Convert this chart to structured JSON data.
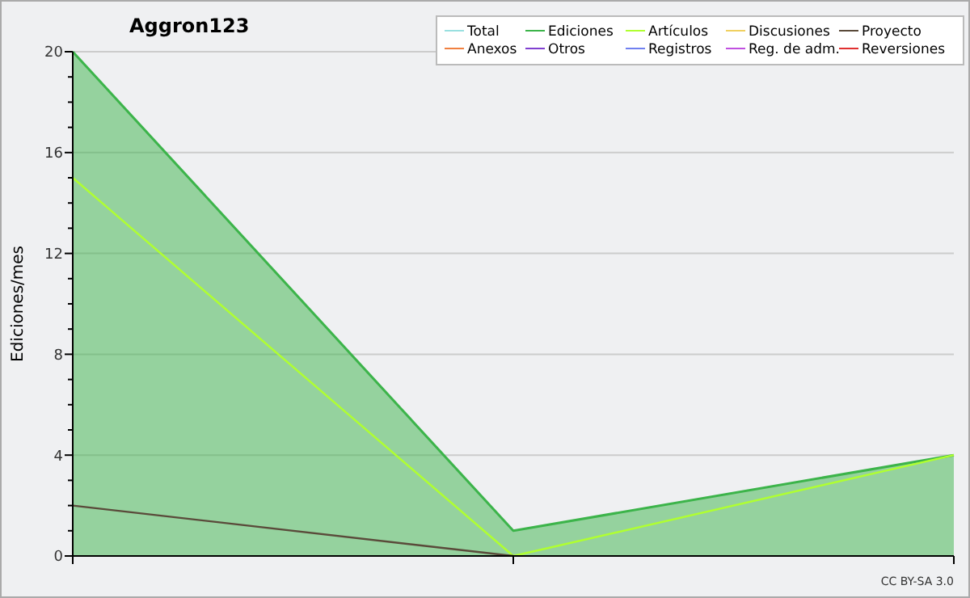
{
  "chart_data": {
    "type": "line",
    "title": "Aggron123",
    "ylabel": "Ediciones/mes",
    "annotations": [
      "CC BY-SA 3.0"
    ],
    "categories": [
      null,
      null,
      null
    ],
    "ylim": [
      0,
      20
    ],
    "yticks": [
      0,
      {
        "value": 1,
        "label": null
      },
      {
        "value": 2,
        "label": null
      },
      {
        "value": 3,
        "label": null
      },
      4,
      {
        "value": 5,
        "label": null
      },
      {
        "value": 6,
        "label": null
      },
      {
        "value": 7,
        "label": null
      },
      8,
      {
        "value": 9,
        "label": null
      },
      {
        "value": 10,
        "label": null
      },
      {
        "value": 11,
        "label": null
      },
      12,
      {
        "value": 13,
        "label": null
      },
      {
        "value": 14,
        "label": null
      },
      {
        "value": 15,
        "label": null
      },
      16,
      {
        "value": 17,
        "label": null
      },
      {
        "value": 18,
        "label": null
      },
      {
        "value": 19,
        "label": null
      },
      20
    ],
    "grid": "y",
    "legend": "top right",
    "series": [
      {
        "name": "Total",
        "color": "#99e0e0",
        "values": [
          null,
          null,
          null
        ]
      },
      {
        "name": "Ediciones",
        "type": "area",
        "color": "#3cb44a",
        "values": [
          20,
          1,
          4
        ]
      },
      {
        "name": "Artículos",
        "color": "#b0ff30",
        "values": [
          15,
          0,
          4
        ]
      },
      {
        "name": "Discusiones",
        "color": "#f0d060",
        "values": [
          null,
          null,
          null
        ]
      },
      {
        "name": "Proyecto",
        "color": "#5a4a3a",
        "values": [
          2,
          0,
          null
        ]
      },
      {
        "name": "Anexos",
        "color": "#f08040",
        "values": [
          null,
          null,
          null
        ]
      },
      {
        "name": "Otros",
        "color": "#8040d0",
        "values": [
          null,
          null,
          null
        ]
      },
      {
        "name": "Registros",
        "color": "#7080f0",
        "values": [
          null,
          null,
          null
        ]
      },
      {
        "name": "Reg. de adm.",
        "color": "#c050e0",
        "values": [
          null,
          null,
          null
        ]
      },
      {
        "name": "Reversiones",
        "color": "#e03030",
        "values": [
          null,
          null,
          null
        ]
      }
    ]
  }
}
